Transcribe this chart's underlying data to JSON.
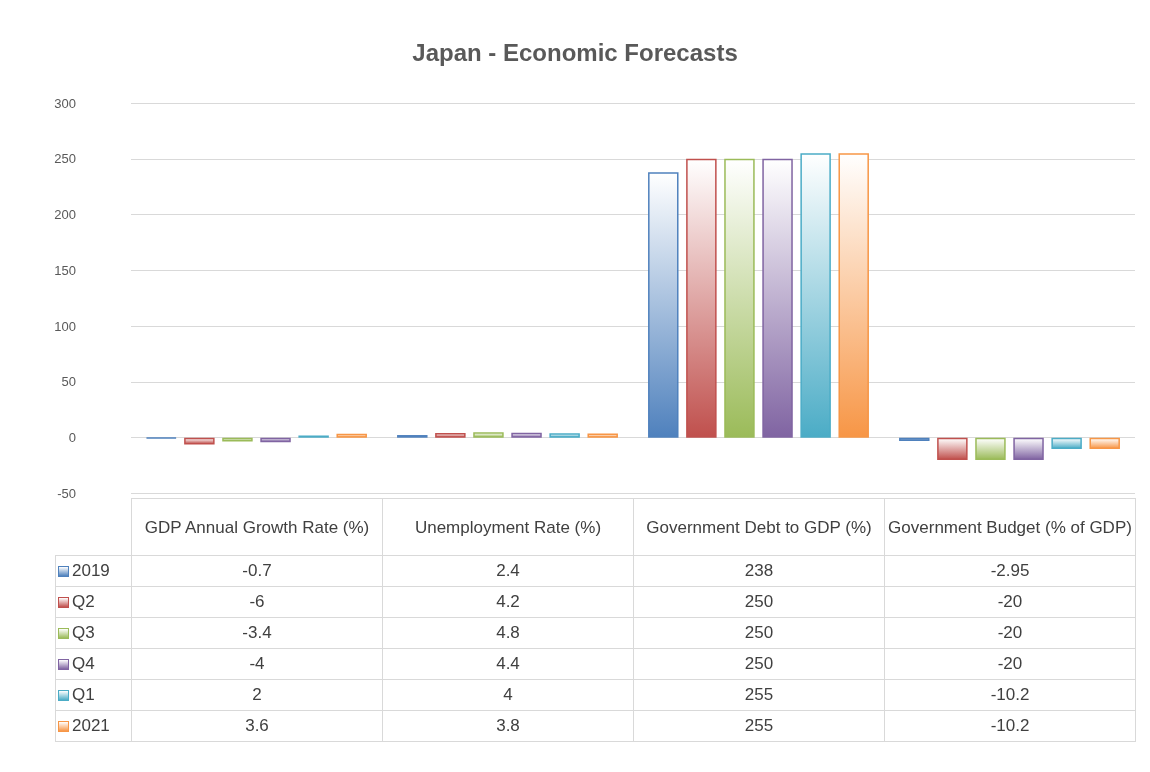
{
  "chart_data": {
    "type": "bar",
    "title": "Japan - Economic Forecasts",
    "categories": [
      "GDP Annual Growth Rate (%)",
      "Unemployment Rate (%)",
      "Government Debt to GDP (%)",
      "Government Budget (% of GDP)"
    ],
    "series": [
      {
        "name": "2019",
        "color": "#4f81bd",
        "values": [
          -0.7,
          2.4,
          238,
          -2.95
        ]
      },
      {
        "name": "Q2",
        "color": "#c0504d",
        "values": [
          -6,
          4.2,
          250,
          -20
        ]
      },
      {
        "name": "Q3",
        "color": "#9bbb59",
        "values": [
          -3.4,
          4.8,
          250,
          -20
        ]
      },
      {
        "name": "Q4",
        "color": "#8064a2",
        "values": [
          -4,
          4.4,
          250,
          -20
        ]
      },
      {
        "name": "Q1",
        "color": "#4bacc6",
        "values": [
          2,
          4,
          255,
          -10.2
        ]
      },
      {
        "name": "2021",
        "color": "#f79646",
        "values": [
          3.6,
          3.8,
          255,
          -10.2
        ]
      }
    ],
    "ylim": [
      -50,
      300
    ],
    "yticks": [
      -50,
      0,
      50,
      100,
      150,
      200,
      250,
      300
    ],
    "grid": "y",
    "legend": "bottom",
    "data_labels": true
  }
}
